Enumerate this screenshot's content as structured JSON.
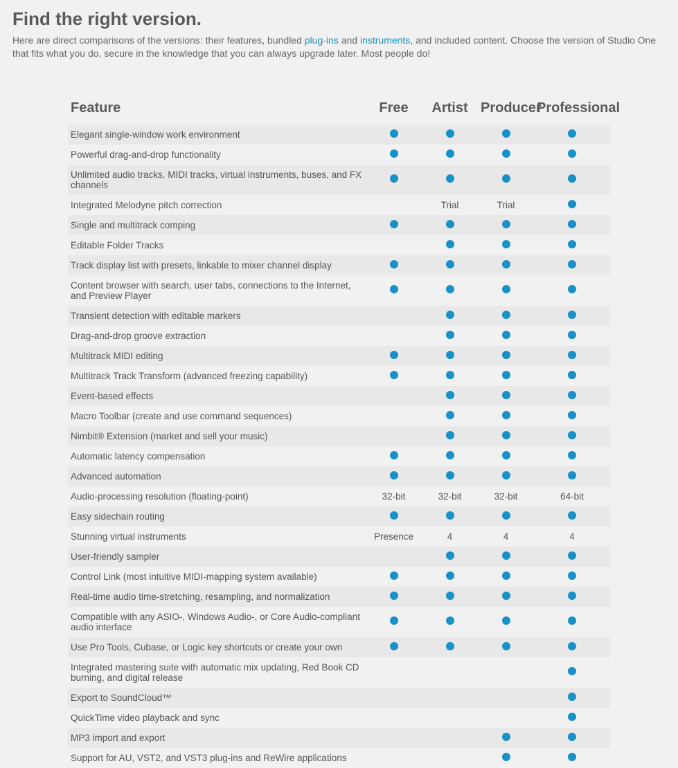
{
  "header": {
    "title": "Find the right version.",
    "intro_prefix": "Here are direct comparisons of the versions: their features, bundled ",
    "link1": "plug-ins",
    "intro_mid": " and ",
    "link2": "instruments",
    "intro_suffix": ", and included content. Choose the version of Studio One that fits what you do, secure in the knowledge that you can always upgrade later. Most people do!"
  },
  "table": {
    "columns": [
      "Feature",
      "Free",
      "Artist",
      "Producer",
      "Professional"
    ],
    "dot_color": "#1890c8",
    "row_bg_odd": "#e8e8e8",
    "row_bg_even": "#f1f1f1",
    "rows": [
      {
        "label": "Elegant single-window work environment",
        "cells": [
          "dot",
          "dot",
          "dot",
          "dot"
        ]
      },
      {
        "label": "Powerful drag-and-drop functionality",
        "cells": [
          "dot",
          "dot",
          "dot",
          "dot"
        ]
      },
      {
        "label": "Unlimited audio tracks, MIDI tracks, virtual instruments, buses, and FX channels",
        "cells": [
          "dot",
          "dot",
          "dot",
          "dot"
        ]
      },
      {
        "label": "Integrated Melodyne pitch correction",
        "cells": [
          "",
          "Trial",
          "Trial",
          "dot"
        ]
      },
      {
        "label": "Single and multitrack comping",
        "cells": [
          "dot",
          "dot",
          "dot",
          "dot"
        ]
      },
      {
        "label": "Editable Folder Tracks",
        "cells": [
          "",
          "dot",
          "dot",
          "dot"
        ]
      },
      {
        "label": "Track display list with presets, linkable to mixer channel display",
        "cells": [
          "dot",
          "dot",
          "dot",
          "dot"
        ]
      },
      {
        "label": "Content browser with search, user tabs, connections to the Internet, and Preview Player",
        "cells": [
          "dot",
          "dot",
          "dot",
          "dot"
        ]
      },
      {
        "label": "Transient detection with editable markers",
        "cells": [
          "",
          "dot",
          "dot",
          "dot"
        ]
      },
      {
        "label": "Drag-and-drop groove extraction",
        "cells": [
          "",
          "dot",
          "dot",
          "dot"
        ]
      },
      {
        "label": "Multitrack MIDI editing",
        "cells": [
          "dot",
          "dot",
          "dot",
          "dot"
        ]
      },
      {
        "label": "Multitrack Track Transform (advanced freezing capability)",
        "cells": [
          "dot",
          "dot",
          "dot",
          "dot"
        ]
      },
      {
        "label": "Event-based effects",
        "cells": [
          "",
          "dot",
          "dot",
          "dot"
        ]
      },
      {
        "label": "Macro Toolbar (create and use command sequences)",
        "cells": [
          "",
          "dot",
          "dot",
          "dot"
        ]
      },
      {
        "label": "Nimbit® Extension (market and sell your music)",
        "cells": [
          "",
          "dot",
          "dot",
          "dot"
        ]
      },
      {
        "label": "Automatic latency compensation",
        "cells": [
          "dot",
          "dot",
          "dot",
          "dot"
        ]
      },
      {
        "label": "Advanced automation",
        "cells": [
          "dot",
          "dot",
          "dot",
          "dot"
        ]
      },
      {
        "label": "Audio-processing resolution (floating-point)",
        "cells": [
          "32-bit",
          "32-bit",
          "32-bit",
          "64-bit"
        ]
      },
      {
        "label": "Easy sidechain routing",
        "cells": [
          "dot",
          "dot",
          "dot",
          "dot"
        ]
      },
      {
        "label": "Stunning virtual instruments",
        "cells": [
          "Presence",
          "4",
          "4",
          "4"
        ]
      },
      {
        "label": "User-friendly sampler",
        "cells": [
          "",
          "dot",
          "dot",
          "dot"
        ]
      },
      {
        "label": "Control Link (most intuitive MIDI-mapping system available)",
        "cells": [
          "dot",
          "dot",
          "dot",
          "dot"
        ]
      },
      {
        "label": "Real-time audio time-stretching, resampling, and normalization",
        "cells": [
          "dot",
          "dot",
          "dot",
          "dot"
        ]
      },
      {
        "label": "Compatible with any ASIO-, Windows Audio-, or Core Audio-compliant audio interface",
        "cells": [
          "dot",
          "dot",
          "dot",
          "dot"
        ]
      },
      {
        "label": "Use Pro Tools, Cubase, or Logic key shortcuts or create your own",
        "cells": [
          "dot",
          "dot",
          "dot",
          "dot"
        ]
      },
      {
        "label": "Integrated mastering suite with automatic mix updating, Red Book CD burning, and digital release",
        "cells": [
          "",
          "",
          "",
          "dot"
        ]
      },
      {
        "label": "Export to SoundCloud™",
        "cells": [
          "",
          "",
          "",
          "dot"
        ]
      },
      {
        "label": "QuickTime video playback and sync",
        "cells": [
          "",
          "",
          "",
          "dot"
        ]
      },
      {
        "label": "MP3 import and export",
        "cells": [
          "",
          "",
          "dot",
          "dot"
        ]
      },
      {
        "label": "Support for AU, VST2, and VST3 plug-ins and ReWire applications",
        "cells": [
          "",
          "",
          "dot",
          "dot"
        ]
      }
    ]
  }
}
